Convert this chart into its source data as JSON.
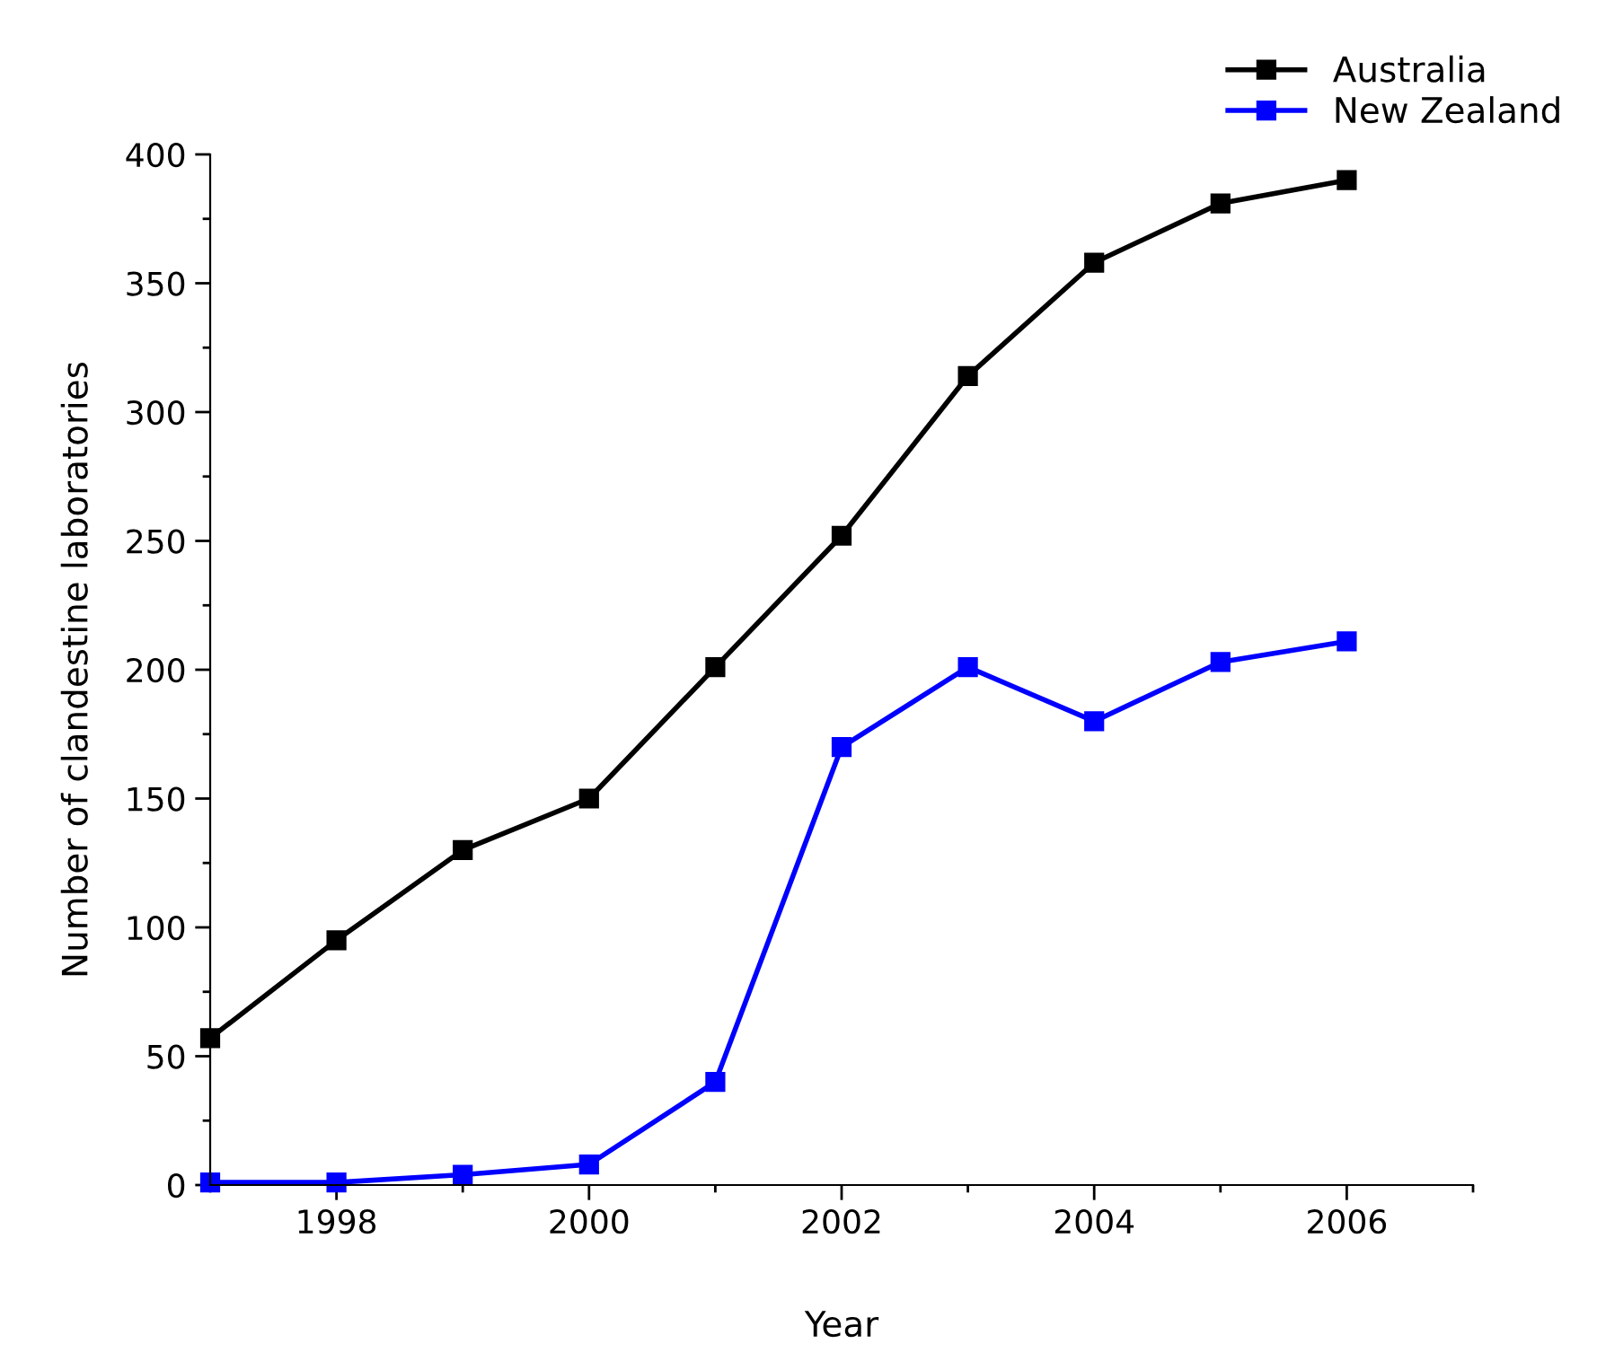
{
  "chart_data": {
    "type": "line",
    "xlabel": "Year",
    "ylabel": "Number of clandestine laboratories",
    "x": [
      1997,
      1998,
      1999,
      2000,
      2001,
      2002,
      2003,
      2004,
      2005,
      2006
    ],
    "series": [
      {
        "name": "Australia",
        "color": "#000000",
        "values": [
          57,
          95,
          130,
          150,
          201,
          252,
          314,
          358,
          381,
          390
        ]
      },
      {
        "name": "New Zealand",
        "color": "#0000ff",
        "values": [
          1,
          1,
          4,
          8,
          40,
          170,
          201,
          180,
          203,
          211
        ]
      }
    ],
    "xlim": [
      1997,
      2007
    ],
    "xticks": [
      1998,
      2000,
      2002,
      2004,
      2006
    ],
    "ylim": [
      0,
      400
    ],
    "yticks": [
      0,
      50,
      100,
      150,
      200,
      250,
      300,
      350,
      400
    ],
    "marker": "square",
    "line_style": "solid",
    "grid": false,
    "legend": "top right"
  }
}
